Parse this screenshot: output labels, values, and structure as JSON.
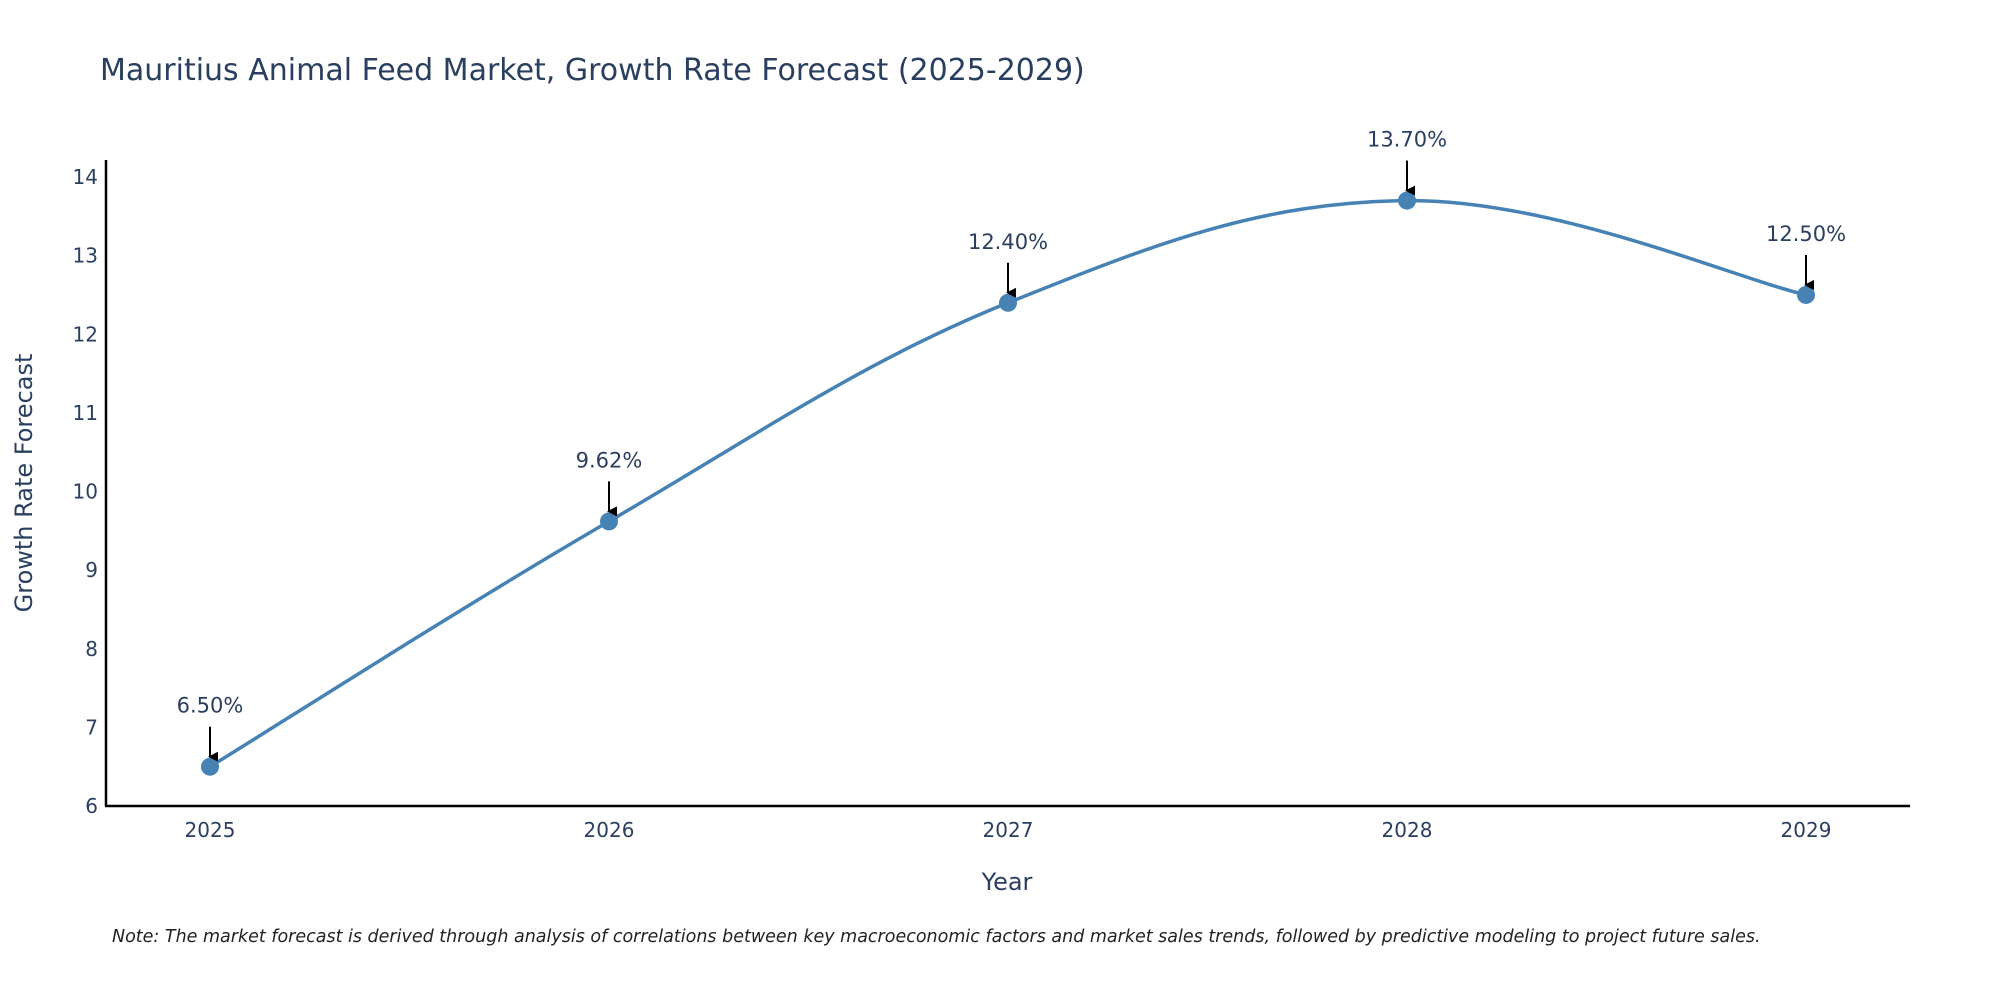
{
  "chart_data": {
    "type": "line",
    "title": "Mauritius Animal Feed Market, Growth Rate Forecast (2025-2029)",
    "xlabel": "Year",
    "ylabel": "Growth Rate Forecast",
    "categories": [
      "2025",
      "2026",
      "2027",
      "2028",
      "2029"
    ],
    "series": [
      {
        "name": "Growth Rate Forecast",
        "values": [
          6.5,
          9.62,
          12.4,
          13.7,
          12.5
        ],
        "labels": [
          "6.50%",
          "9.62%",
          "12.40%",
          "13.70%",
          "12.50%"
        ]
      }
    ],
    "ylim": [
      6,
      14.2
    ],
    "yticks": [
      6,
      7,
      8,
      9,
      10,
      11,
      12,
      13,
      14
    ],
    "grid": false,
    "line_shape": "spline",
    "line_color": "#4682b4",
    "marker_color": "#4682b4",
    "axis_color": "#000000",
    "text_color": "#2a3f5f",
    "annotation_arrow_color": "#000000"
  },
  "note": "Note: The market forecast is derived through analysis of correlations between key macroeconomic factors and market sales trends, followed by predictive modeling to project future sales."
}
